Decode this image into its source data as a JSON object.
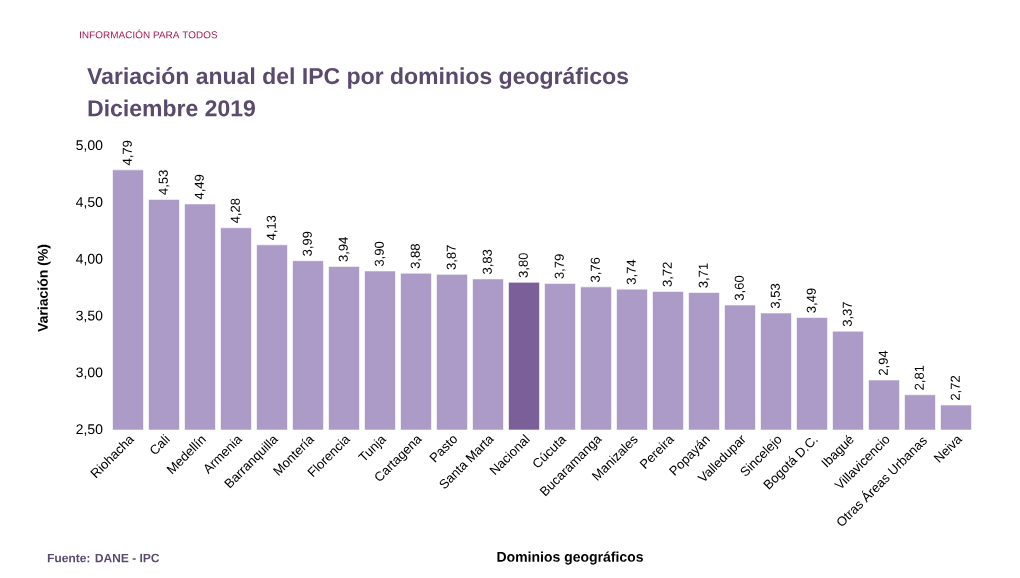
{
  "chart_data": {
    "type": "bar",
    "title": "Variación anual del IPC por dominios geográficos",
    "subtitle": "Diciembre 2019",
    "xlabel": "Dominios geográficos",
    "ylabel": "Variación (%)",
    "categories": [
      "Riohacha",
      "Cali",
      "Medellín",
      "Armenia",
      "Barranquilla",
      "Montería",
      "Florencia",
      "Tunja",
      "Cartagena",
      "Pasto",
      "Santa Marta",
      "Nacional",
      "Cúcuta",
      "Bucaramanga",
      "Manizales",
      "Pereira",
      "Popayán",
      "Valledupar",
      "Sincelejo",
      "Bogotá D.C.",
      "Ibagué",
      "Villavicencio",
      "Otras Áreas Urbanas",
      "Neiva"
    ],
    "values": [
      4.79,
      4.53,
      4.49,
      4.28,
      4.13,
      3.99,
      3.94,
      3.9,
      3.88,
      3.87,
      3.83,
      3.8,
      3.79,
      3.76,
      3.74,
      3.72,
      3.71,
      3.6,
      3.53,
      3.49,
      3.37,
      2.94,
      2.81,
      2.72
    ],
    "value_labels": [
      "4,79",
      "4,53",
      "4,49",
      "4,28",
      "4,13",
      "3,99",
      "3,94",
      "3,90",
      "3,88",
      "3,87",
      "3,83",
      "3,80",
      "3,79",
      "3,76",
      "3,74",
      "3,72",
      "3,71",
      "3,60",
      "3,53",
      "3,49",
      "3,37",
      "2,94",
      "2,81",
      "2,72"
    ],
    "colors": [
      "#ab9bc6",
      "#ab9bc6",
      "#ab9bc6",
      "#ab9bc6",
      "#ab9bc6",
      "#ab9bc6",
      "#ab9bc6",
      "#ab9bc6",
      "#ab9bc6",
      "#ab9bc6",
      "#ab9bc6",
      "#7b5f98",
      "#ab9bc6",
      "#ab9bc6",
      "#ab9bc6",
      "#ab9bc6",
      "#ab9bc6",
      "#ab9bc6",
      "#ab9bc6",
      "#ab9bc6",
      "#ab9bc6",
      "#ab9bc6",
      "#ab9bc6",
      "#ab9bc6"
    ],
    "ylim": [
      2.5,
      5.0
    ],
    "yticks": [
      {
        "value": 2.5,
        "label": "2,50"
      },
      {
        "value": 3.0,
        "label": "3,00"
      },
      {
        "value": 3.5,
        "label": "3,50"
      },
      {
        "value": 4.0,
        "label": "4,00"
      },
      {
        "value": 4.5,
        "label": "4,50"
      },
      {
        "value": 5.0,
        "label": "5,00"
      }
    ],
    "grid": false,
    "annotations": [
      "INFORMACIÓN PARA TODOS",
      "Fuente: DANE - IPC"
    ]
  }
}
